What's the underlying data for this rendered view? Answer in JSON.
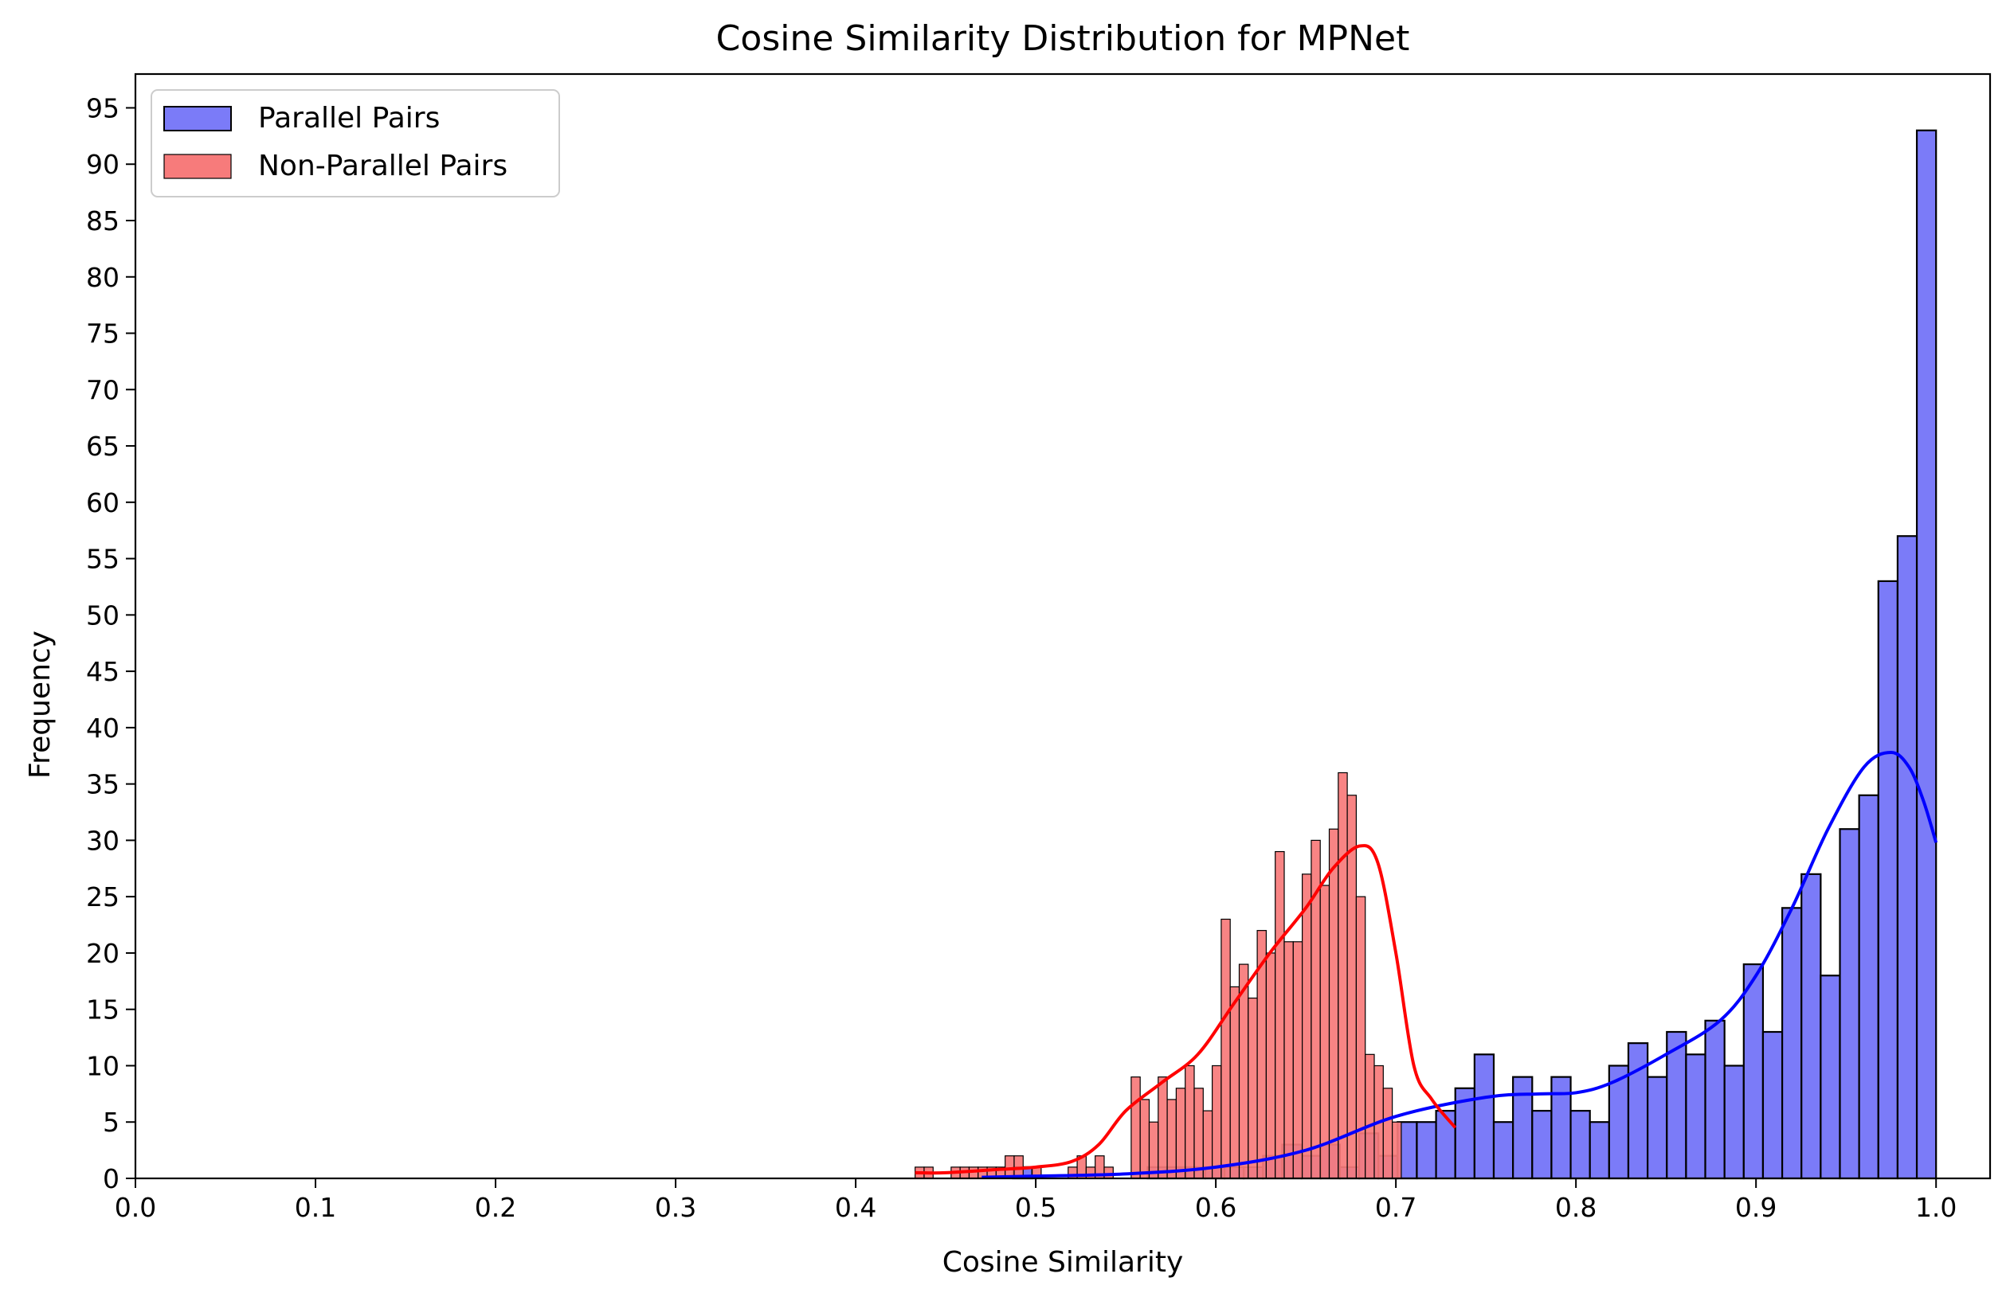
{
  "chart_data": {
    "type": "bar",
    "title": "Cosine Similarity Distribution for MPNet",
    "xlabel": "Cosine Similarity",
    "ylabel": "Frequency",
    "xlim": [
      0.0,
      1.03
    ],
    "ylim": [
      0,
      98
    ],
    "xticks": [
      "0.0",
      "0.1",
      "0.2",
      "0.3",
      "0.4",
      "0.5",
      "0.6",
      "0.7",
      "0.8",
      "0.9",
      "1.0"
    ],
    "yticks": [
      "0",
      "5",
      "10",
      "15",
      "20",
      "25",
      "30",
      "35",
      "40",
      "45",
      "50",
      "55",
      "60",
      "65",
      "70",
      "75",
      "80",
      "85",
      "90",
      "95"
    ],
    "grid": false,
    "legend_position": "top-left",
    "series": [
      {
        "name": "Parallel Pairs",
        "color": "#7B7BF8",
        "line_color": "#0000FF",
        "bin_start": 0.466,
        "bin_width": 0.01068,
        "values": [
          0,
          0,
          1,
          0,
          0,
          0,
          0,
          0,
          0,
          1,
          1,
          1,
          1,
          1,
          1,
          2,
          3,
          2,
          3,
          1,
          4,
          2,
          5,
          5,
          6,
          8,
          11,
          5,
          9,
          6,
          9,
          6,
          5,
          10,
          12,
          9,
          13,
          11,
          14,
          10,
          19,
          13,
          24,
          27,
          18,
          31,
          34,
          53,
          57,
          93
        ],
        "kde_x": [
          0.47,
          0.5,
          0.55,
          0.6,
          0.65,
          0.7,
          0.75,
          0.78,
          0.8,
          0.82,
          0.85,
          0.88,
          0.9,
          0.92,
          0.94,
          0.96,
          0.975,
          0.985,
          0.993,
          1.0
        ],
        "kde_y": [
          0.1,
          0.2,
          0.4,
          1.0,
          2.5,
          5.5,
          7.2,
          7.5,
          7.6,
          8.5,
          11.0,
          14.0,
          18.0,
          24.0,
          31.0,
          36.5,
          37.8,
          36.5,
          33.5,
          29.8
        ]
      },
      {
        "name": "Non-Parallel Pairs",
        "color": "#F77B7B",
        "line_color": "#FF0000",
        "bin_start": 0.433,
        "bin_width": 0.005,
        "values": [
          1,
          1,
          0,
          0,
          1,
          1,
          1,
          1,
          1,
          1,
          2,
          2,
          0,
          1,
          0,
          0,
          0,
          1,
          2,
          1,
          2,
          1,
          0,
          0,
          9,
          7,
          5,
          9,
          7,
          8,
          10,
          8,
          6,
          10,
          23,
          17,
          19,
          16,
          22,
          20,
          29,
          21,
          21,
          27,
          30,
          26,
          31,
          36,
          34,
          25,
          11,
          10,
          8,
          5
        ],
        "kde_x": [
          0.433,
          0.45,
          0.48,
          0.5,
          0.52,
          0.535,
          0.55,
          0.57,
          0.59,
          0.61,
          0.63,
          0.65,
          0.665,
          0.68,
          0.69,
          0.7,
          0.71,
          0.72,
          0.733
        ],
        "kde_y": [
          0.5,
          0.5,
          0.8,
          1.0,
          1.5,
          3.0,
          6.0,
          8.5,
          11.0,
          15.5,
          20.0,
          24.0,
          27.5,
          29.5,
          28.0,
          20.0,
          10.0,
          7.0,
          4.5
        ]
      }
    ]
  }
}
